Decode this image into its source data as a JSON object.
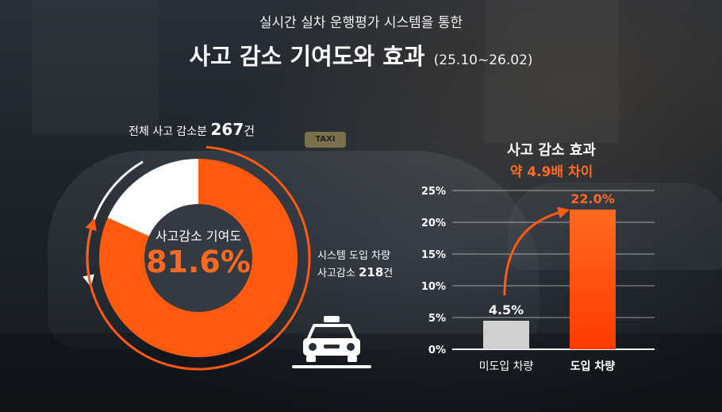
{
  "header": {
    "subtitle": "실시간 실차 운행평가 시스템을 통한",
    "title": "사고 감소 기여도와 효과",
    "period": "(25.10~26.02)"
  },
  "donut": {
    "total_prefix": "전체 사고 감소분",
    "total_value": "267",
    "total_unit": "건",
    "center_label": "사고감소 기여도",
    "center_value": "81.6%",
    "system_label_line1": "시스템 도입 차량",
    "system_label_prefix": "사고감소",
    "system_value": "218",
    "system_unit": "건"
  },
  "effect": {
    "title": "사고 감소 효과",
    "subtitle": "약 4.9배 차이"
  },
  "colors": {
    "accent": "#ff5a10",
    "accent_text": "#ff6a1f",
    "remainder": "#ffffff",
    "bar_gray": "#d0d0d0"
  },
  "icons": {
    "taxi": "taxi-icon"
  },
  "chart_data": [
    {
      "type": "pie",
      "slices": [
        {
          "label": "시스템 도입 차량",
          "value": 218
        },
        {
          "label": "",
          "value": 49
        }
      ],
      "total": 267,
      "center_value": "81.6%"
    },
    {
      "type": "bar",
      "categories": [
        "미도입 차량",
        "도입 차량"
      ],
      "values": [
        4.5,
        22.0
      ],
      "value_labels": [
        "4.5%",
        "22.0%"
      ],
      "ylim": [
        0,
        25
      ],
      "yticks": [
        0,
        5,
        10,
        15,
        20,
        25
      ],
      "ytick_labels": [
        "0%",
        "5%",
        "10%",
        "15%",
        "20%",
        "25%"
      ],
      "grid": true
    }
  ]
}
